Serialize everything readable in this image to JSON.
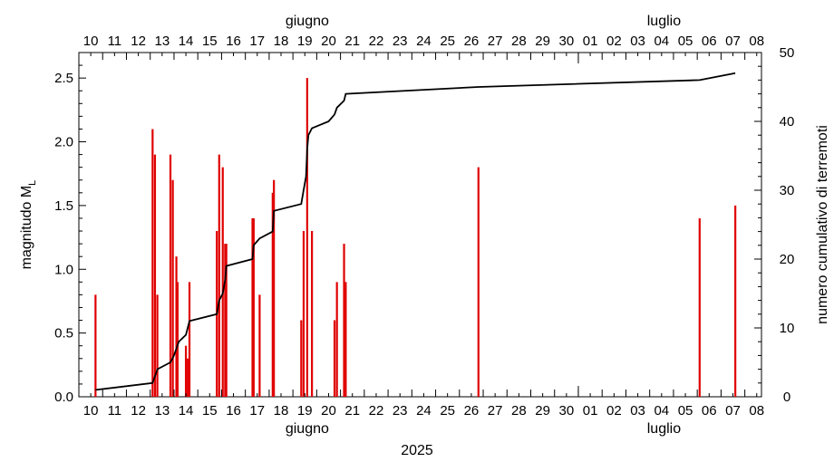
{
  "chart_data": {
    "type": "bar+line",
    "xlabel": "2025",
    "ylabel_left_main": "magnitudo M",
    "ylabel_left_sub": "L",
    "ylabel_right": "numero cumulativo di terremoti",
    "ylim_left": [
      0,
      2.7
    ],
    "ylim_right": [
      0,
      50
    ],
    "yticks_left": [
      "0.0",
      "0.5",
      "1.0",
      "1.5",
      "2.0",
      "2.5"
    ],
    "yticks_right": [
      "0",
      "10",
      "20",
      "30",
      "40",
      "50"
    ],
    "x_day_labels": [
      "10",
      "11",
      "12",
      "13",
      "14",
      "15",
      "16",
      "17",
      "18",
      "19",
      "20",
      "21",
      "22",
      "23",
      "24",
      "25",
      "26",
      "27",
      "28",
      "29",
      "30",
      "01",
      "02",
      "03",
      "04",
      "05",
      "06",
      "07",
      "08"
    ],
    "months": [
      {
        "name": "giugno",
        "label_at": 19.6
      },
      {
        "name": "luglio",
        "label_at": 34.6
      }
    ],
    "x_start": 10,
    "x_end": 38.7,
    "month_boundary": 31,
    "magnitudes": [
      {
        "t": 10.7,
        "m": 0.8
      },
      {
        "t": 13.1,
        "m": 2.1
      },
      {
        "t": 13.2,
        "m": 1.9
      },
      {
        "t": 13.3,
        "m": 0.8
      },
      {
        "t": 13.85,
        "m": 1.9
      },
      {
        "t": 13.95,
        "m": 1.7
      },
      {
        "t": 14.1,
        "m": 1.1
      },
      {
        "t": 14.15,
        "m": 0.9
      },
      {
        "t": 14.5,
        "m": 0.4
      },
      {
        "t": 14.58,
        "m": 0.3
      },
      {
        "t": 14.65,
        "m": 0.9
      },
      {
        "t": 15.8,
        "m": 1.3
      },
      {
        "t": 15.9,
        "m": 1.9
      },
      {
        "t": 16.05,
        "m": 1.8
      },
      {
        "t": 16.15,
        "m": 1.2
      },
      {
        "t": 16.2,
        "m": 1.2
      },
      {
        "t": 17.3,
        "m": 1.4
      },
      {
        "t": 17.35,
        "m": 1.4
      },
      {
        "t": 17.6,
        "m": 0.8
      },
      {
        "t": 18.15,
        "m": 1.6
      },
      {
        "t": 18.2,
        "m": 1.7
      },
      {
        "t": 19.35,
        "m": 0.6
      },
      {
        "t": 19.45,
        "m": 1.3
      },
      {
        "t": 19.6,
        "m": 2.5
      },
      {
        "t": 19.8,
        "m": 1.3
      },
      {
        "t": 20.75,
        "m": 0.6
      },
      {
        "t": 20.85,
        "m": 0.9
      },
      {
        "t": 21.15,
        "m": 1.2
      },
      {
        "t": 21.22,
        "m": 0.9
      },
      {
        "t": 26.8,
        "m": 1.8
      },
      {
        "t": 36.1,
        "m": 1.4
      },
      {
        "t": 37.6,
        "m": 1.5
      }
    ],
    "cumulative": [
      [
        10.7,
        1
      ],
      [
        13.1,
        2
      ],
      [
        13.3,
        4
      ],
      [
        13.85,
        5
      ],
      [
        14.0,
        6
      ],
      [
        14.1,
        7
      ],
      [
        14.2,
        8
      ],
      [
        14.5,
        9
      ],
      [
        14.65,
        11
      ],
      [
        15.8,
        12
      ],
      [
        15.9,
        14
      ],
      [
        16.05,
        15
      ],
      [
        16.15,
        17
      ],
      [
        16.2,
        19
      ],
      [
        17.3,
        20
      ],
      [
        17.35,
        22
      ],
      [
        17.6,
        23
      ],
      [
        18.15,
        24
      ],
      [
        18.2,
        27
      ],
      [
        19.35,
        28
      ],
      [
        19.45,
        30
      ],
      [
        19.55,
        32
      ],
      [
        19.6,
        36
      ],
      [
        19.65,
        38
      ],
      [
        19.8,
        39
      ],
      [
        20.5,
        40
      ],
      [
        20.75,
        41
      ],
      [
        20.85,
        42
      ],
      [
        21.15,
        43
      ],
      [
        21.22,
        44
      ],
      [
        26.8,
        45
      ],
      [
        36.1,
        46
      ],
      [
        37.6,
        47
      ]
    ],
    "colors": {
      "bars": "#e00000",
      "line": "#000000",
      "axes": "#000000"
    }
  }
}
